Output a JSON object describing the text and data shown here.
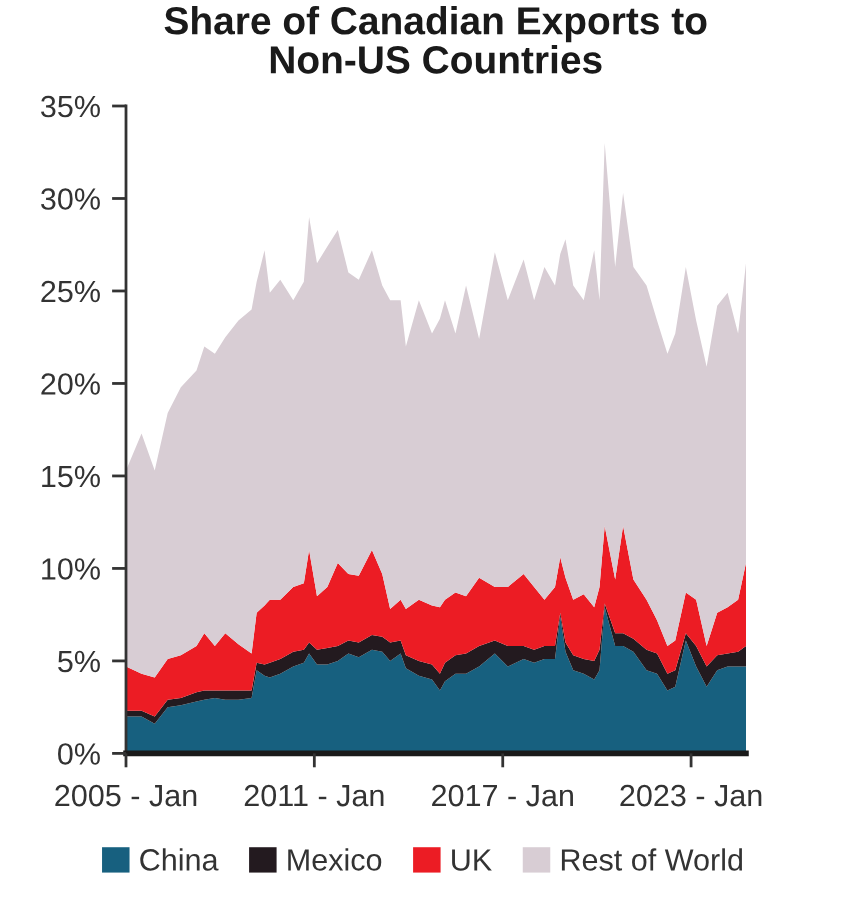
{
  "chart_data": {
    "type": "area",
    "title": "Share of Canadian Exports to\nNon-US Countries",
    "stacked": true,
    "x": [
      "2005-01",
      "2005-07",
      "2005-12",
      "2006-05",
      "2006-10",
      "2007-04",
      "2007-07",
      "2007-11",
      "2008-03",
      "2008-08",
      "2009-01",
      "2009-03",
      "2009-06",
      "2009-08",
      "2009-12",
      "2010-05",
      "2010-09",
      "2010-11",
      "2011-02",
      "2011-06",
      "2011-10",
      "2012-02",
      "2012-06",
      "2012-11",
      "2013-03",
      "2013-06",
      "2013-10",
      "2013-12",
      "2014-05",
      "2014-10",
      "2015-01",
      "2015-03",
      "2015-07",
      "2015-11",
      "2016-04",
      "2016-10",
      "2017-03",
      "2017-09",
      "2018-01",
      "2018-05",
      "2018-09",
      "2018-11",
      "2019-01",
      "2019-04",
      "2019-08",
      "2019-12",
      "2020-02",
      "2020-04",
      "2020-08",
      "2020-11",
      "2021-03",
      "2021-08",
      "2021-12",
      "2022-04",
      "2022-07",
      "2022-11",
      "2023-03",
      "2023-07",
      "2023-11",
      "2024-03",
      "2024-07",
      "2024-10"
    ],
    "series": [
      {
        "name": "China",
        "color": "#17607f",
        "values": [
          2.0,
          2.0,
          1.6,
          2.5,
          2.6,
          2.8,
          2.9,
          3.0,
          2.9,
          2.9,
          3.0,
          4.5,
          4.2,
          4.1,
          4.3,
          4.7,
          4.9,
          5.4,
          4.8,
          4.8,
          5.0,
          5.4,
          5.2,
          5.6,
          5.5,
          5.0,
          5.4,
          4.6,
          4.2,
          4.0,
          3.4,
          3.9,
          4.3,
          4.3,
          4.7,
          5.4,
          4.7,
          5.1,
          4.9,
          5.1,
          5.1,
          7.4,
          5.5,
          4.5,
          4.3,
          4.0,
          4.5,
          7.9,
          5.8,
          5.8,
          5.5,
          4.5,
          4.3,
          3.4,
          3.6,
          6.1,
          4.7,
          3.6,
          4.5,
          4.7,
          4.7,
          4.7
        ]
      },
      {
        "name": "Mexico",
        "color": "#231a1f",
        "values": [
          0.3,
          0.3,
          0.4,
          0.4,
          0.4,
          0.5,
          0.5,
          0.4,
          0.5,
          0.5,
          0.4,
          0.4,
          0.6,
          0.8,
          0.8,
          0.8,
          0.7,
          0.6,
          0.8,
          0.9,
          0.8,
          0.7,
          0.8,
          0.8,
          0.8,
          1.0,
          0.7,
          0.7,
          0.8,
          0.8,
          0.9,
          1.0,
          1.0,
          1.1,
          1.1,
          0.7,
          1.1,
          0.7,
          0.7,
          0.7,
          0.7,
          0.2,
          0.5,
          0.8,
          0.8,
          1.0,
          1.1,
          0.2,
          0.7,
          0.7,
          0.7,
          1.1,
          1.1,
          0.9,
          0.9,
          0.4,
          1.1,
          1.1,
          0.8,
          0.7,
          0.8,
          1.1
        ]
      },
      {
        "name": "UK",
        "color": "#ec1c24",
        "values": [
          2.4,
          2.0,
          2.1,
          2.2,
          2.3,
          2.5,
          3.1,
          2.4,
          3.1,
          2.5,
          2.0,
          2.7,
          3.2,
          3.4,
          3.2,
          3.5,
          3.6,
          5.0,
          2.9,
          3.3,
          4.5,
          3.6,
          3.6,
          4.6,
          3.4,
          1.8,
          2.2,
          2.5,
          3.3,
          3.2,
          3.6,
          3.4,
          3.4,
          3.1,
          3.7,
          2.9,
          3.2,
          3.9,
          3.4,
          2.5,
          3.2,
          3.0,
          3.5,
          3.0,
          3.5,
          2.9,
          3.4,
          4.2,
          2.9,
          5.8,
          3.2,
          2.7,
          1.8,
          1.5,
          1.6,
          2.2,
          2.5,
          1.1,
          2.3,
          2.5,
          2.8,
          4.5
        ]
      },
      {
        "name": "Rest of World",
        "color": "#d8cdd4",
        "values": [
          10.6,
          13.0,
          11.2,
          13.3,
          14.5,
          14.9,
          15.5,
          15.8,
          16.0,
          17.5,
          18.6,
          17.9,
          19.2,
          16.6,
          17.3,
          15.5,
          16.3,
          18.0,
          18.0,
          18.4,
          18.0,
          16.3,
          16.0,
          16.2,
          15.6,
          16.7,
          16.2,
          14.2,
          16.2,
          14.7,
          15.6,
          16.2,
          14.0,
          16.8,
          12.9,
          18.1,
          15.5,
          17.0,
          15.5,
          18.0,
          16.3,
          16.4,
          18.3,
          17.0,
          15.9,
          19.3,
          15.5,
          20.7,
          16.9,
          18.0,
          16.9,
          17.0,
          16.2,
          15.8,
          16.6,
          17.6,
          15.1,
          15.1,
          16.6,
          17.0,
          14.4,
          16.2
        ]
      }
    ],
    "xlim": [
      "2005-01",
      "2024-10"
    ],
    "xticks": [
      {
        "value": "2005-01",
        "label": "2005 - Jan"
      },
      {
        "value": "2011-01",
        "label": "2011 - Jan"
      },
      {
        "value": "2017-01",
        "label": "2017 - Jan"
      },
      {
        "value": "2023-01",
        "label": "2023 - Jan"
      }
    ],
    "ylim": [
      0,
      35
    ],
    "yticks": [
      {
        "value": 0,
        "label": "0%"
      },
      {
        "value": 5,
        "label": "5%"
      },
      {
        "value": 10,
        "label": "10%"
      },
      {
        "value": 15,
        "label": "15%"
      },
      {
        "value": 20,
        "label": "20%"
      },
      {
        "value": 25,
        "label": "25%"
      },
      {
        "value": 30,
        "label": "30%"
      },
      {
        "value": 35,
        "label": "35%"
      }
    ],
    "grid": false,
    "legend": "bottom"
  }
}
